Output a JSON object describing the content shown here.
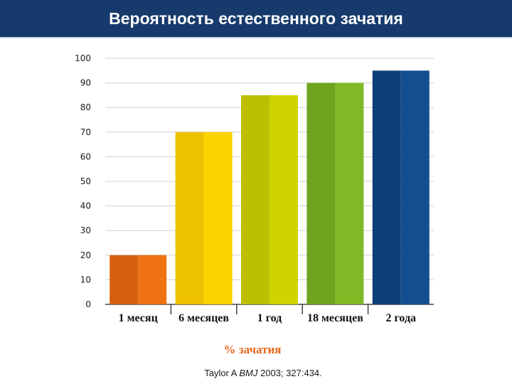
{
  "header": {
    "title": "Вероятность естественного зачатия"
  },
  "source": {
    "author": "Taylor A",
    "journal": "BMJ",
    "details": "2003; 327:434."
  },
  "chart_data": {
    "type": "bar",
    "title": "",
    "xlabel": "% зачатия",
    "ylabel": "",
    "categories": [
      "1 месяц",
      "6 месяцев",
      "1 год",
      "18 месяцев",
      "2 года"
    ],
    "values": [
      20,
      70,
      85,
      90,
      95
    ],
    "ylim": [
      0,
      100
    ],
    "yticks": [
      0,
      10,
      20,
      30,
      40,
      50,
      60,
      70,
      80,
      90,
      100
    ],
    "grid": true,
    "legend": "none",
    "colors": [
      [
        "#d6600e",
        "#ee7212"
      ],
      [
        "#edc000",
        "#fbd400"
      ],
      [
        "#bcc000",
        "#cfd300"
      ],
      [
        "#6ea31e",
        "#80b826"
      ],
      [
        "#0f3f78",
        "#154e8e"
      ]
    ]
  }
}
